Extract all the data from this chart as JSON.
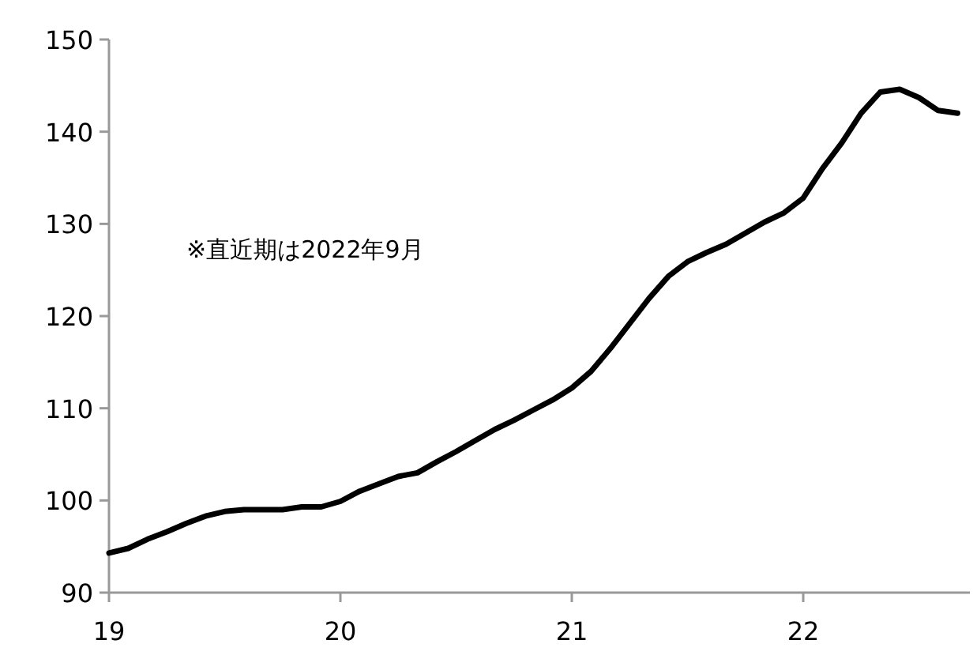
{
  "chart_data": {
    "type": "line",
    "annotations": [
      "※直近期は2022年9月"
    ],
    "x": [
      19.0,
      19.083,
      19.167,
      19.25,
      19.333,
      19.417,
      19.5,
      19.583,
      19.667,
      19.75,
      19.833,
      19.917,
      20.0,
      20.083,
      20.167,
      20.25,
      20.333,
      20.417,
      20.5,
      20.583,
      20.667,
      20.75,
      20.833,
      20.917,
      21.0,
      21.083,
      21.167,
      21.25,
      21.333,
      21.417,
      21.5,
      21.583,
      21.667,
      21.75,
      21.833,
      21.917,
      22.0,
      22.083,
      22.167,
      22.25,
      22.333,
      22.417,
      22.5,
      22.583,
      22.667
    ],
    "series": [
      {
        "color": "#000000",
        "values": [
          94.3,
          94.8,
          95.8,
          96.6,
          97.5,
          98.3,
          98.8,
          99.0,
          99.0,
          99.0,
          99.3,
          99.3,
          99.9,
          101.0,
          101.8,
          102.6,
          103.0,
          104.2,
          105.3,
          106.5,
          107.7,
          108.7,
          109.8,
          110.9,
          112.2,
          114.0,
          116.5,
          119.2,
          121.9,
          124.3,
          125.9,
          126.9,
          127.8,
          129.0,
          130.2,
          131.2,
          132.8,
          136.0,
          138.8,
          142.0,
          144.3,
          144.6,
          143.7,
          142.3,
          142.0
        ]
      }
    ],
    "xlim": [
      19,
      22.72
    ],
    "ylim": [
      90,
      150
    ],
    "xticks": [
      19,
      20,
      21,
      22
    ],
    "yticks": [
      90,
      100,
      110,
      120,
      130,
      140,
      150
    ],
    "grid": false,
    "marker": "none",
    "line_style": "solid"
  }
}
